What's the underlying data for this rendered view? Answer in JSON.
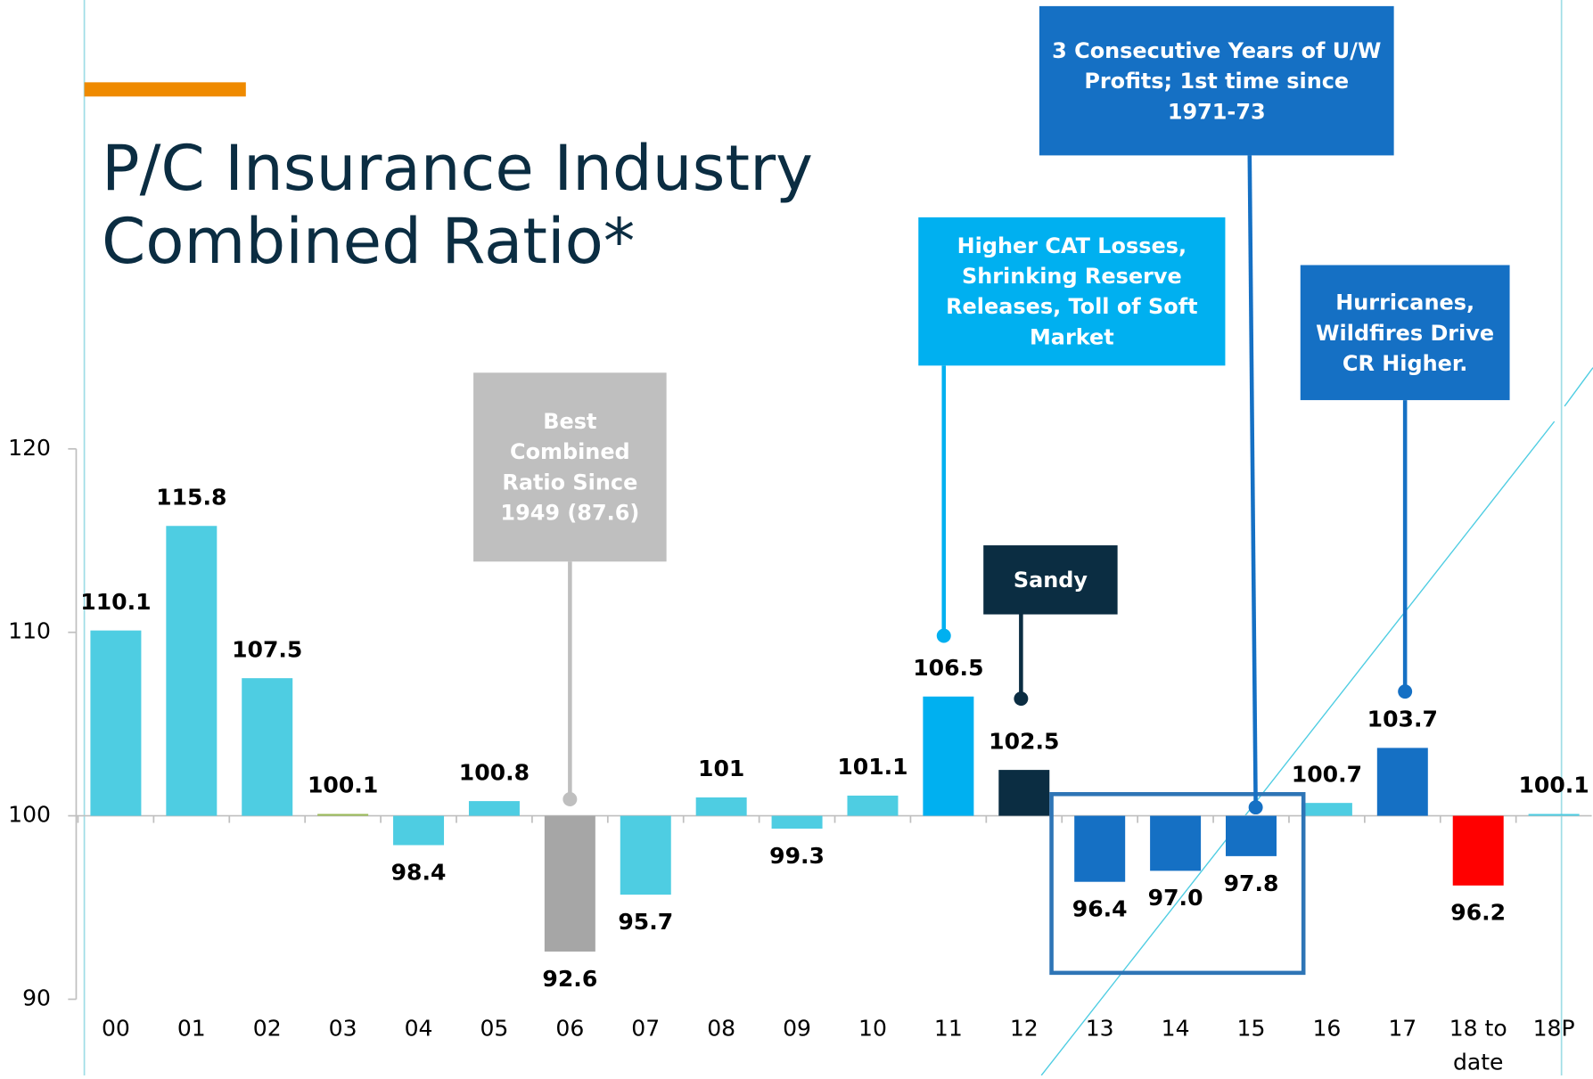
{
  "chart_data": {
    "type": "bar",
    "title": "P/C Insurance Industry Combined Ratio*",
    "categories": [
      "00",
      "01",
      "02",
      "03",
      "04",
      "05",
      "06",
      "07",
      "08",
      "09",
      "10",
      "11",
      "12",
      "13",
      "14",
      "15",
      "16",
      "17",
      "18 to date",
      "18P"
    ],
    "values": [
      110.1,
      115.8,
      107.5,
      100.1,
      98.4,
      100.8,
      92.6,
      95.7,
      101,
      99.3,
      101.1,
      106.5,
      102.5,
      96.4,
      97.0,
      97.8,
      100.7,
      103.7,
      96.2,
      100.1
    ],
    "value_labels": [
      "110.1",
      "115.8",
      "107.5",
      "100.1",
      "98.4",
      "100.8",
      "92.6",
      "95.7",
      "101",
      "99.3",
      "101.1",
      "106.5",
      "102.5",
      "96.4",
      "97.0",
      "97.8",
      "100.7",
      "103.7",
      "96.2",
      "100.1"
    ],
    "colors": [
      "#4ecde2",
      "#4ecde2",
      "#4ecde2",
      "#9bbb59",
      "#4ecde2",
      "#4ecde2",
      "#a6a6a6",
      "#4ecde2",
      "#4ecde2",
      "#4ecde2",
      "#4ecde2",
      "#00b0f0",
      "#0b2d42",
      "#1570c4",
      "#1570c4",
      "#1570c4",
      "#4ecde2",
      "#1570c4",
      "#ff0000",
      "#4ecde2"
    ],
    "ylim": [
      90,
      120
    ],
    "yticks": [
      90,
      100,
      110,
      120
    ],
    "x_axis_crosses": 100,
    "grid": false,
    "annotations": [
      "Best Combined Ratio Since 1949 (87.6)",
      "Higher CAT Losses, Shrinking Reserve Releases, Toll of Soft Market",
      "Sandy",
      "3 Consecutive Years of U/W Profits; 1st time since 1971-73",
      "Hurricanes, Wildfires Drive CR Higher."
    ]
  }
}
